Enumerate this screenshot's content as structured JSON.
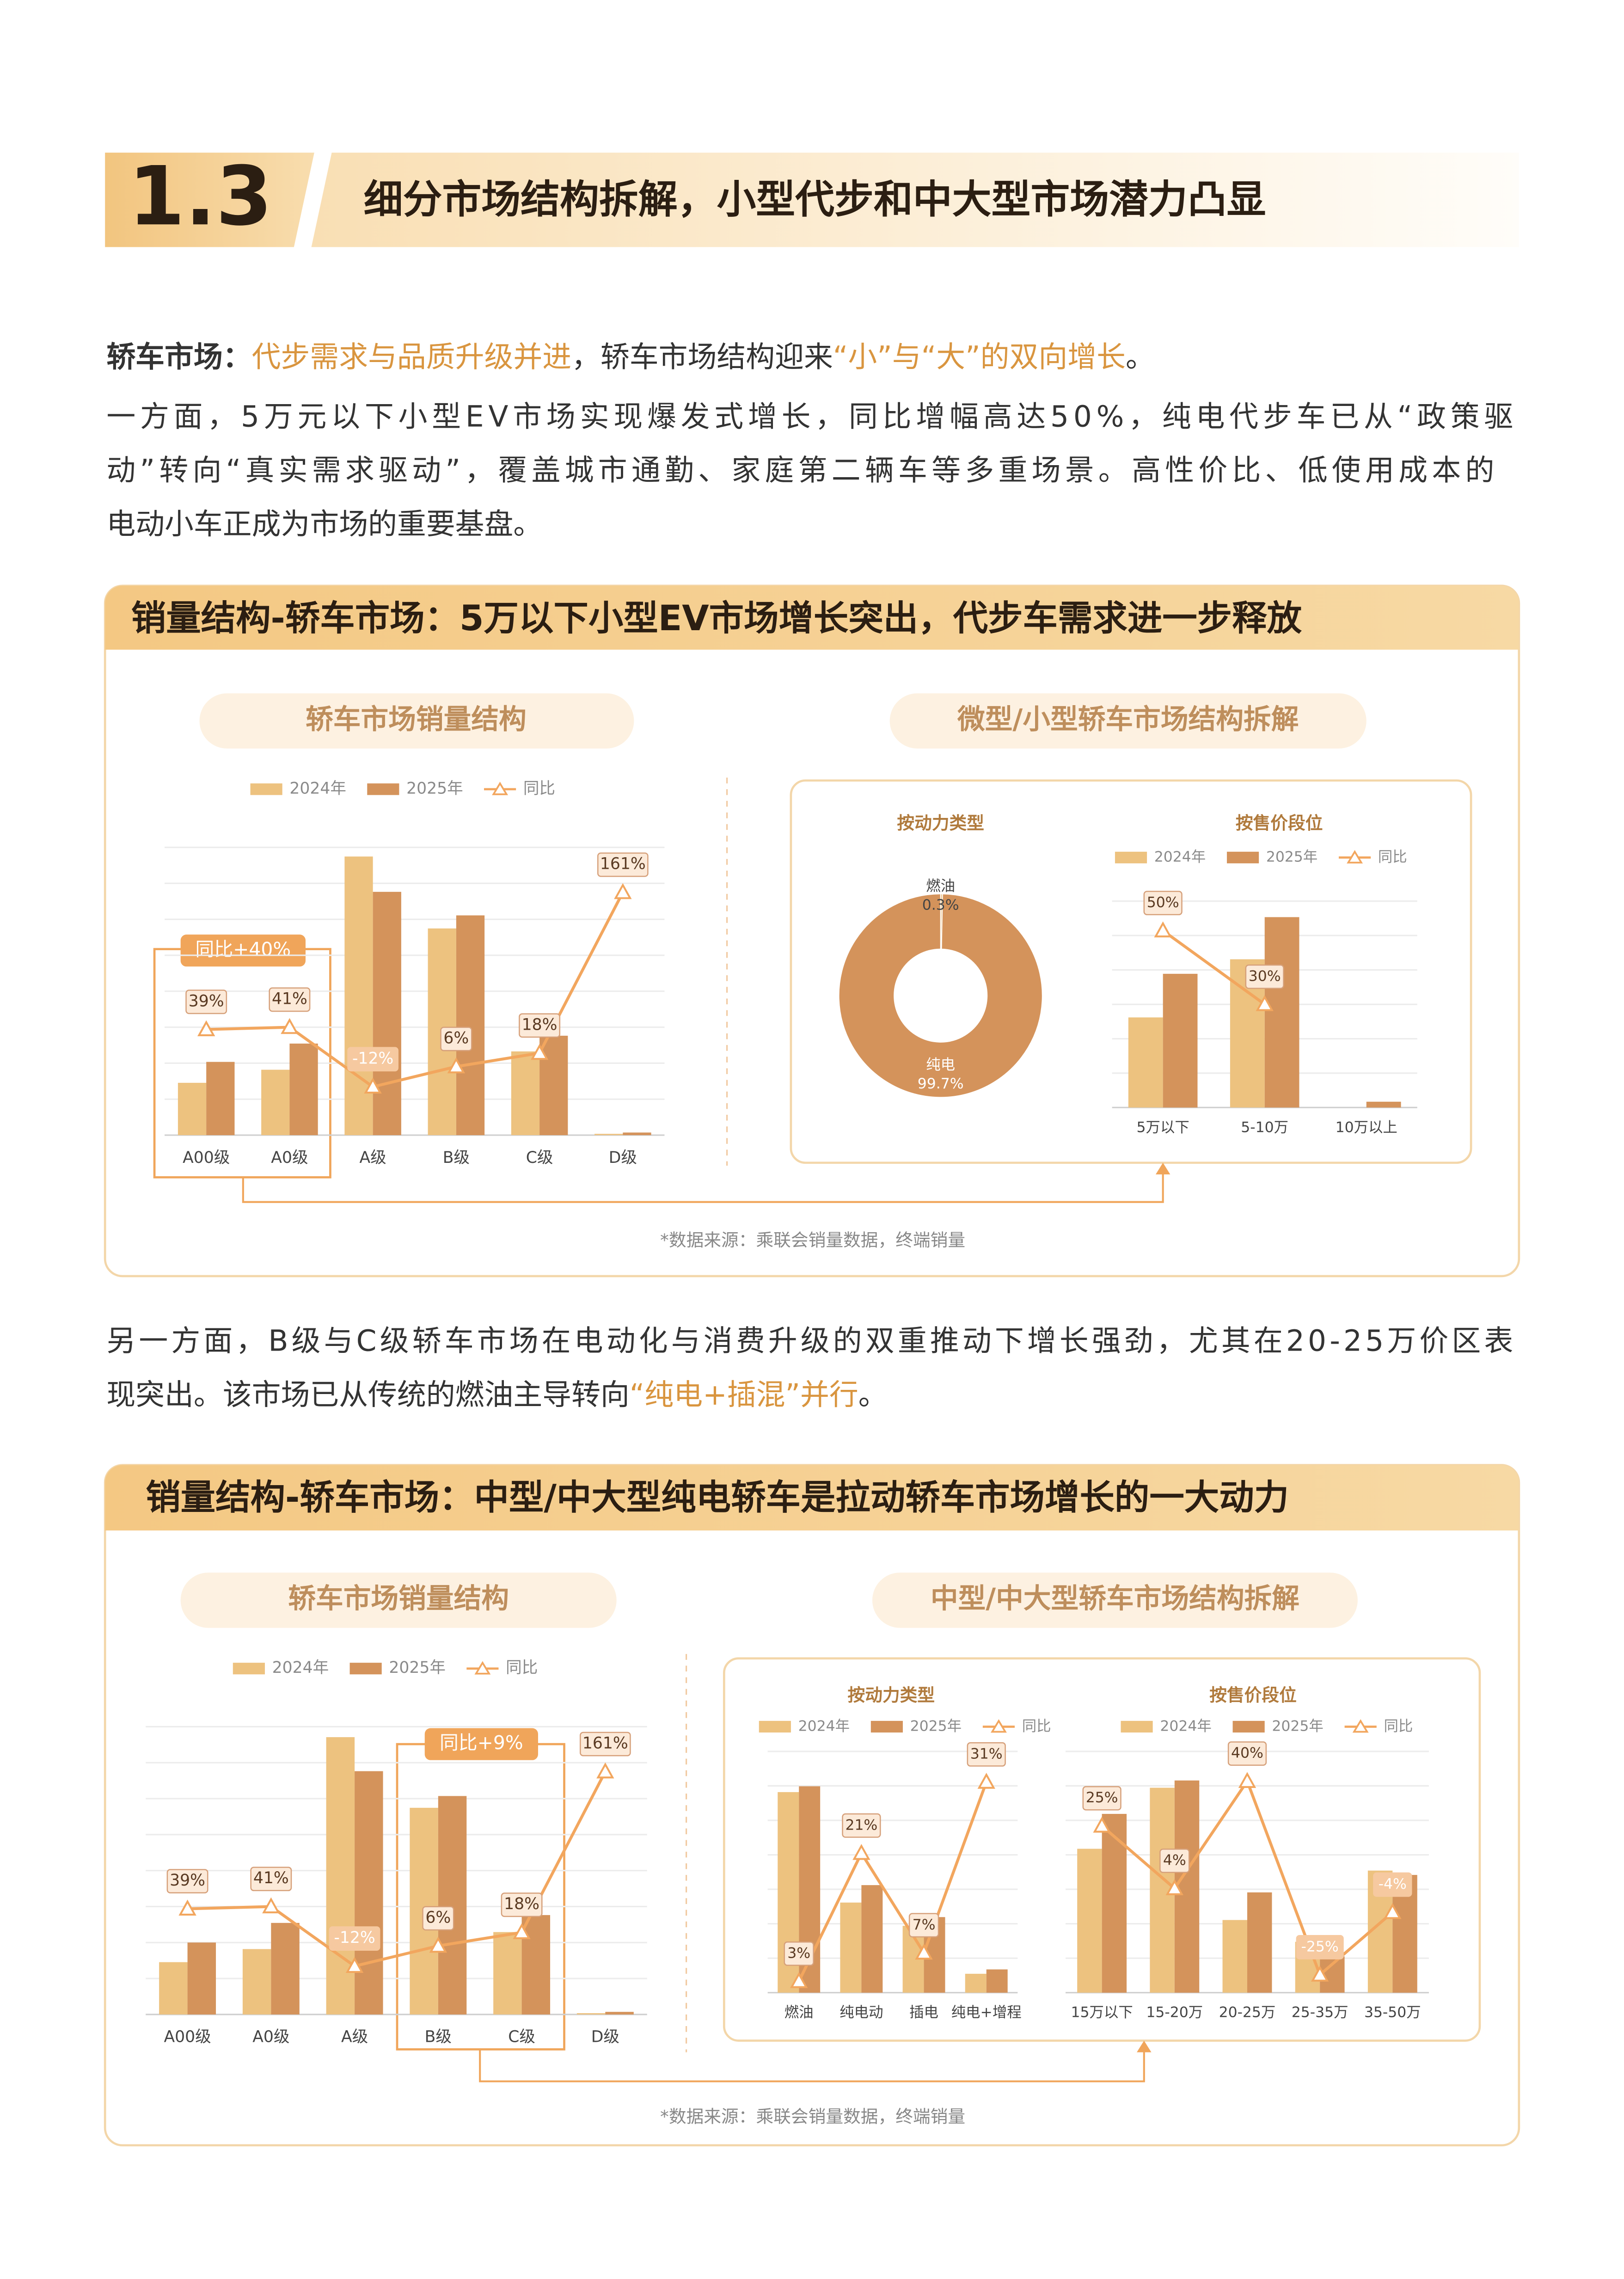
{
  "header": {
    "number": "1.3",
    "title": "细分市场结构拆解，小型代步和中大型市场潜力凸显"
  },
  "intro": {
    "label": "轿车市场：",
    "highlight1": "代步需求与品质升级并进",
    "text1": "，轿车市场结构迎来",
    "highlight2": "“小”与“大”的双向增长",
    "text2": "。"
  },
  "paragraph1": [
    "一方面，5万元以下小型EV市场实现爆发式增长，同比增幅高达50%，纯电代步车已从“政策驱",
    "动”转向“真实需求驱动”，覆盖城市通勤、家庭第二辆车等多重场景。高性价比、低使用成本的",
    "电动小车正成为市场的重要基盘。"
  ],
  "paragraph2": {
    "line1": "另一方面，B级与C级轿车市场在电动化与消费升级的双重推动下增长强劲，尤其在20-25万价区表",
    "line2": "现突出。该市场已从传统的燃油主导转向",
    "highlight": "“纯电+插混”并行",
    "end": "。"
  },
  "panels": [
    {
      "title": "销量结构-轿车市场：5万以下小型EV市场增长突出，代步车需求进一步释放",
      "left_subtitle": "轿车市场销量结构",
      "right_subtitle": "微型/小型轿车市场结构拆解",
      "highlight_label": "同比+40%",
      "source": "*数据来源：乘联会销量数据，终端销量",
      "charts": [
        {
          "type": "bar",
          "grid": true,
          "categories": [
            "A00级",
            "A0级",
            "A级",
            "B级",
            "C级",
            "D级"
          ],
          "series": [
            {
              "name": "2024年",
              "color": "#EDC27F",
              "values": [
                40,
                50,
                213,
                158,
                64,
                1
              ]
            },
            {
              "name": "2025年",
              "color": "#D4935B",
              "values": [
                56,
                70,
                186,
                168,
                76,
                2
              ]
            },
            {
              "name": "同比",
              "type": "line",
              "axis": "y2",
              "color": "#F2A65E",
              "values": [
                39,
                41,
                -12,
                6,
                18,
                161
              ],
              "value_labels": [
                "39%",
                "41%",
                "-12%",
                "6%",
                "18%",
                "161%"
              ]
            }
          ],
          "ylim": [
            0,
            220
          ],
          "y2lim": [
            -55,
            201
          ]
        },
        {
          "type": "pie",
          "donut": true,
          "subtitle": "按动力类型",
          "categories": [
            "燃油",
            "纯电"
          ],
          "values": [
            0.3,
            99.7
          ],
          "value_labels": [
            "0.3%",
            "99.7%"
          ],
          "colors": [
            "#EDC27F",
            "#D4935B"
          ]
        },
        {
          "type": "bar",
          "grid": true,
          "subtitle": "按售价段位",
          "categories": [
            "5万以下",
            "5-10万",
            "10万以上"
          ],
          "series": [
            {
              "name": "2024年",
              "color": "#EDC27F",
              "values": [
                62,
                102,
                0
              ]
            },
            {
              "name": "2025年",
              "color": "#D4935B",
              "values": [
                92,
                131,
                4
              ]
            },
            {
              "name": "同比",
              "type": "line",
              "axis": "y2",
              "color": "#F2A65E",
              "values": [
                50,
                30,
                null
              ],
              "value_labels": [
                "50%",
                "30%",
                null
              ]
            }
          ],
          "ylim": [
            0,
            142
          ],
          "y2lim": [
            2,
            58
          ]
        }
      ]
    },
    {
      "title": "销量结构-轿车市场：中型/中大型纯电轿车是拉动轿车市场增长的一大动力",
      "left_subtitle": "轿车市场销量结构",
      "right_subtitle": "中型/中大型轿车市场结构拆解",
      "highlight_label": "同比+9%",
      "source": "*数据来源：乘联会销量数据，终端销量",
      "charts": [
        {
          "type": "bar",
          "grid": true,
          "categories": [
            "A00级",
            "A0级",
            "A级",
            "B级",
            "C级",
            "D级"
          ],
          "series": [
            {
              "name": "2024年",
              "color": "#EDC27F",
              "values": [
                40,
                50,
                212,
                158,
                63,
                1
              ]
            },
            {
              "name": "2025年",
              "color": "#D4935B",
              "values": [
                55,
                70,
                186,
                167,
                76,
                2
              ]
            },
            {
              "name": "同比",
              "type": "line",
              "axis": "y2",
              "color": "#F2A65E",
              "values": [
                39,
                41,
                -12,
                6,
                18,
                161
              ],
              "value_labels": [
                "39%",
                "41%",
                "-12%",
                "6%",
                "18%",
                "161%"
              ]
            }
          ],
          "ylim": [
            0,
            220
          ],
          "y2lim": [
            -55,
            201
          ]
        },
        {
          "type": "bar",
          "grid": true,
          "subtitle": "按动力类型",
          "categories": [
            "燃油",
            "纯电动",
            "插电",
            "纯电+增程"
          ],
          "series": [
            {
              "name": "2024年",
              "color": "#EDC27F",
              "values": [
                138,
                62,
                46,
                13
              ]
            },
            {
              "name": "2025年",
              "color": "#D4935B",
              "values": [
                142,
                74,
                52,
                16
              ]
            },
            {
              "name": "同比",
              "type": "line",
              "axis": "y2",
              "color": "#F2A65E",
              "values": [
                3,
                21,
                7,
                31
              ],
              "value_labels": [
                "3%",
                "21%",
                "7%",
                "31%"
              ]
            }
          ],
          "ylim": [
            0,
            166
          ],
          "y2lim": [
            1.4,
            35.3
          ]
        },
        {
          "type": "bar",
          "grid": true,
          "subtitle": "按售价段位",
          "categories": [
            "15万以下",
            "15-20万",
            "20-25万",
            "25-35万",
            "35-50万"
          ],
          "series": [
            {
              "name": "2024年",
              "color": "#EDC27F",
              "values": [
                99,
                141,
                50,
                35,
                84
              ]
            },
            {
              "name": "2025年",
              "color": "#D4935B",
              "values": [
                123,
                146,
                69,
                25,
                81
              ]
            },
            {
              "name": "同比",
              "type": "line",
              "axis": "y2",
              "color": "#F2A65E",
              "values": [
                25,
                4,
                40,
                -25,
                -4
              ],
              "value_labels": [
                "25%",
                "4%",
                "40%",
                "-25%",
                "-4%"
              ]
            }
          ],
          "ylim": [
            0,
            166
          ],
          "y2lim": [
            -31,
            50
          ]
        }
      ]
    }
  ]
}
